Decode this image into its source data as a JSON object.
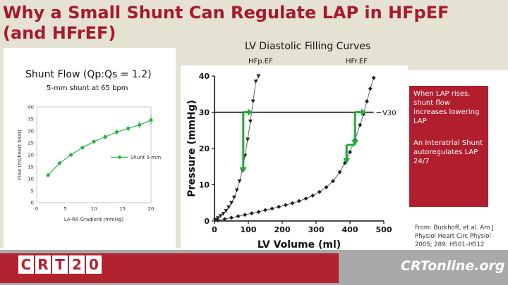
{
  "slide": {
    "title": "Why a Small Shunt Can Regulate LAP in HFpEF (and HFrEF)",
    "lv_title": "LV Diastolic Filling Curves",
    "hfpef_label": "HFp.EF",
    "hfref_label": "HFr.EF",
    "shunt_title": "Shunt Flow (Qp:Qs = 1.2)",
    "shunt_subtitle": "5-mm shunt at 65 bpm",
    "callout_1": "When LAP rises, shunt flow increases lowering LAP",
    "callout_2": "An Interatrial Shunt autoregulates LAP 24/7",
    "source": "From: Burkhoff, et al. Am J Physiol Heart Circ Physiol 2005; 289: H501–H512",
    "footer_left_letters": [
      "C",
      "R",
      "T",
      "2",
      "0"
    ],
    "footer_right_logo_main": "CRTonline",
    "footer_right_logo_suffix": ".org"
  },
  "colors": {
    "title": "#a6192e",
    "accent_red": "#b11f2e",
    "shunt_green": "#2db34a",
    "arrow_green": "#1faa3c",
    "background": "#e6e2d3"
  },
  "chart_data": [
    {
      "type": "line",
      "xlabel": "LA-RA Gradient (mmHg)",
      "ylabel": "Flow (ml/heart beat)",
      "xlim": [
        0,
        20
      ],
      "ylim": [
        0,
        40
      ],
      "xticks": [
        0,
        5,
        10,
        15,
        20
      ],
      "yticks": [
        0,
        5,
        10,
        15,
        20,
        25,
        30,
        35,
        40
      ],
      "legend_placement": "right",
      "series": [
        {
          "name": "Shunt 5-mm",
          "x": [
            2,
            4,
            6,
            8,
            10,
            12,
            14,
            16,
            18,
            20
          ],
          "y": [
            11.5,
            16.5,
            20,
            23,
            25.5,
            27.5,
            29.5,
            31,
            32.5,
            34.5
          ],
          "err": [
            0.3,
            0.4,
            0.5,
            0.6,
            0.8,
            1,
            1.2,
            1.3,
            1.5,
            2
          ]
        }
      ]
    },
    {
      "type": "scatter",
      "xlabel": "LV Volume (ml)",
      "ylabel": "Pressure (mmHg)",
      "xlim": [
        0,
        500
      ],
      "ylim": [
        0,
        40
      ],
      "xticks": [
        0,
        100,
        200,
        300,
        400,
        500
      ],
      "yticks": [
        0,
        10,
        20,
        30,
        40
      ],
      "annotation": "V30",
      "reference_level": 30,
      "series": [
        {
          "label": "HFp.EF",
          "marker": "triangle-down",
          "x": [
            2,
            10,
            18,
            26,
            34,
            42,
            50,
            58,
            66,
            74,
            82,
            90,
            98,
            106,
            114,
            122,
            130
          ],
          "y": [
            0.3,
            0.8,
            1.4,
            2,
            2.8,
            3.8,
            5,
            6.5,
            8.5,
            11,
            14,
            18,
            22.5,
            27.5,
            33,
            38.5,
            40
          ]
        },
        {
          "label": "HFr.EF",
          "marker": "diamond",
          "x": [
            10,
            30,
            50,
            70,
            90,
            110,
            130,
            150,
            170,
            190,
            210,
            230,
            250,
            270,
            290,
            310,
            330,
            350,
            370,
            385,
            400,
            415,
            430,
            440,
            450,
            460,
            470
          ],
          "y": [
            0.2,
            0.5,
            0.9,
            1.3,
            1.7,
            2.1,
            2.5,
            3,
            3.4,
            3.9,
            4.4,
            4.9,
            5.5,
            6.2,
            7,
            8,
            9.3,
            11,
            13.5,
            16,
            19,
            22.5,
            26.5,
            29.5,
            33,
            36.5,
            39.5
          ]
        }
      ],
      "green_arrows": [
        {
          "curve": "HFp.EF",
          "from_x": 100,
          "from_y": 30,
          "horizontal_to_x": 85,
          "down_to_y": 13.5
        },
        {
          "curve": "HFr.EF",
          "from_x": 435,
          "from_y": 30,
          "horizontal_to_x": 415,
          "down_to_y": 21,
          "then_horizontal_to_x": 390,
          "then_down_to_y": 16
        }
      ]
    }
  ]
}
